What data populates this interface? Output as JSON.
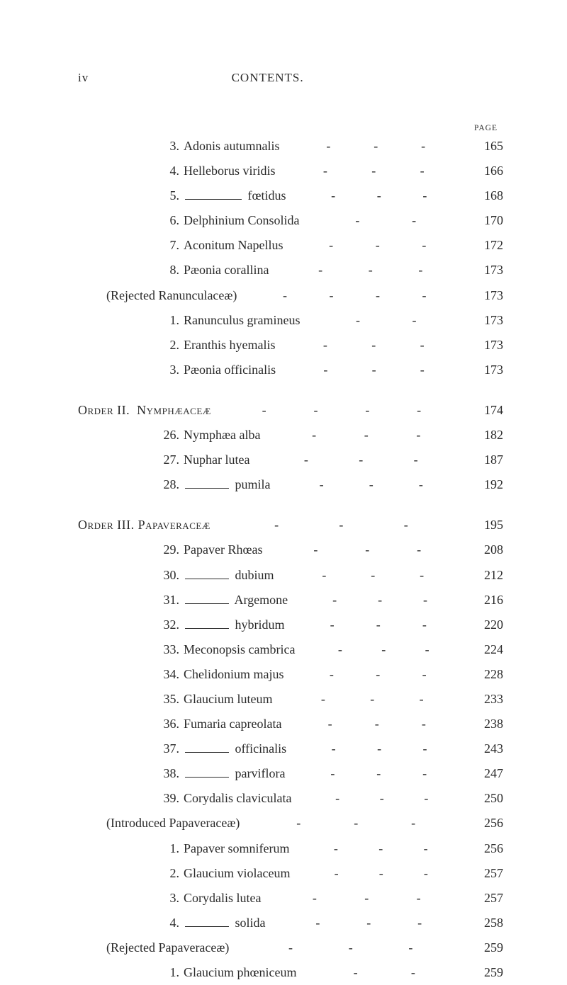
{
  "runningHead": {
    "pagenum": "iv",
    "title": "CONTENTS."
  },
  "pageLabel": "PAGE",
  "colors": {
    "text": "#2a2a2a",
    "background": "#ffffff",
    "rule": "#2a2a2a"
  },
  "typography": {
    "body_fontsize_pt": 13,
    "line_height": 1.95,
    "font_family": "Times New Roman"
  },
  "blocks": [
    {
      "entries": [
        {
          "indent": 1,
          "num": "3.",
          "text": "Adonis autumnalis",
          "page": "165",
          "leaders": 3
        },
        {
          "indent": 1,
          "num": "4.",
          "text": "Helleborus viridis",
          "page": "166",
          "leaders": 3
        },
        {
          "indent": 1,
          "num": "5.",
          "rule": 80,
          "after": " fœtidus",
          "page": "168",
          "leaders": 3
        },
        {
          "indent": 1,
          "num": "6.",
          "text": "Delphinium Consolida",
          "page": "170",
          "leaders": 2
        },
        {
          "indent": 1,
          "num": "7.",
          "text": "Aconitum Napellus",
          "page": "172",
          "leaders": 3
        },
        {
          "indent": 1,
          "num": "8.",
          "text": "Pæonia corallina",
          "page": "173",
          "leaders": 3
        },
        {
          "indent": 0,
          "text": "(Rejected Ranunculaceæ)",
          "page": "173",
          "leaders": 4
        },
        {
          "indent": 1,
          "num": "1.",
          "text": "Ranunculus gramineus",
          "page": "173",
          "leaders": 2
        },
        {
          "indent": 1,
          "num": "2.",
          "text": "Eranthis hyemalis",
          "page": "173",
          "leaders": 3
        },
        {
          "indent": 1,
          "num": "3.",
          "text": "Pæonia officinalis",
          "page": "173",
          "leaders": 3
        }
      ]
    },
    {
      "entries": [
        {
          "indent": "order",
          "orderHead": true,
          "text": "Order II.  Nymphæaceæ",
          "page": "174",
          "leaders": 4
        },
        {
          "indent": 1,
          "num": "26.",
          "text": "Nymphæa alba",
          "page": "182",
          "leaders": 3
        },
        {
          "indent": 1,
          "num": "27.",
          "text": "Nuphar lutea",
          "page": "187",
          "leaders": 3
        },
        {
          "indent": 1,
          "num": "28.",
          "rule": 62,
          "after": " pumila",
          "page": "192",
          "leaders": 3
        }
      ]
    },
    {
      "entries": [
        {
          "indent": "order",
          "orderHead": true,
          "text": "Order III. Papaveraceæ",
          "page": "195",
          "leaders": 3
        },
        {
          "indent": 1,
          "num": "29.",
          "text": "Papaver Rhœas",
          "page": "208",
          "leaders": 3
        },
        {
          "indent": 1,
          "num": "30.",
          "rule": 62,
          "after": " dubium",
          "page": "212",
          "leaders": 3
        },
        {
          "indent": 1,
          "num": "31.",
          "rule": 62,
          "after": " Argemone",
          "page": "216",
          "leaders": 3
        },
        {
          "indent": 1,
          "num": "32.",
          "rule": 62,
          "after": " hybridum",
          "page": "220",
          "leaders": 3
        },
        {
          "indent": 1,
          "num": "33.",
          "text": "Meconopsis cambrica",
          "page": "224",
          "leaders": 3
        },
        {
          "indent": 1,
          "num": "34.",
          "text": "Chelidonium majus",
          "page": "228",
          "leaders": 3
        },
        {
          "indent": 1,
          "num": "35.",
          "text": "Glaucium luteum",
          "page": "233",
          "leaders": 3
        },
        {
          "indent": 1,
          "num": "36.",
          "text": "Fumaria capreolata",
          "page": "238",
          "leaders": 3
        },
        {
          "indent": 1,
          "num": "37.",
          "rule": 62,
          "after": " officinalis",
          "page": "243",
          "leaders": 3
        },
        {
          "indent": 1,
          "num": "38.",
          "rule": 62,
          "after": " parviflora",
          "page": "247",
          "leaders": 3
        },
        {
          "indent": 1,
          "num": "39.",
          "text": "Corydalis claviculata",
          "page": "250",
          "leaders": 3
        },
        {
          "indent": 0,
          "text": "(Introduced Papaveraceæ)",
          "page": "256",
          "leaders": 3
        },
        {
          "indent": 1,
          "num": "1.",
          "text": "Papaver somniferum",
          "page": "256",
          "leaders": 3
        },
        {
          "indent": 1,
          "num": "2.",
          "text": "Glaucium violaceum",
          "page": "257",
          "leaders": 3
        },
        {
          "indent": 1,
          "num": "3.",
          "text": "Corydalis lutea",
          "page": "257",
          "leaders": 3
        },
        {
          "indent": 1,
          "num": "4.",
          "rule": 62,
          "after": " solida",
          "page": "258",
          "leaders": 3
        },
        {
          "indent": 0,
          "text": "(Rejected Papaveraceæ)",
          "page": "259",
          "leaders": 3
        },
        {
          "indent": 1,
          "num": "1.",
          "text": "Glaucium phœniceum",
          "page": "259",
          "leaders": 2
        }
      ]
    }
  ]
}
